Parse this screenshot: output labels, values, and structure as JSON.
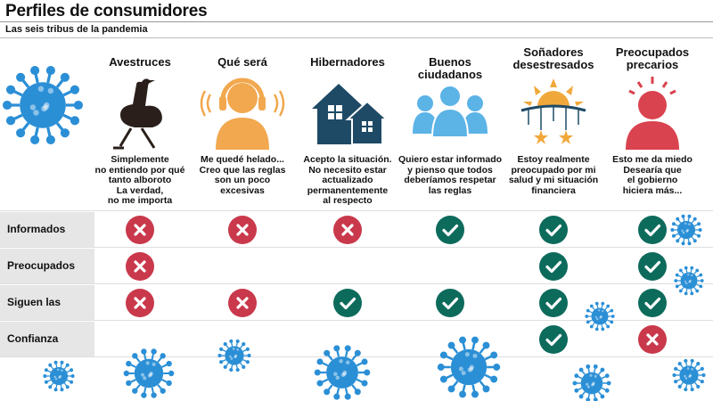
{
  "header": {
    "title": "Perfiles de consumidores",
    "subtitle": "Las seis tribus de la pandemia"
  },
  "colors": {
    "check": "#0d6b5c",
    "cross": "#c9394b",
    "virus": "#2b8fd6",
    "row_label_bg": "#e6e6e6"
  },
  "tribes": [
    {
      "name": "Avestruces",
      "icon": "ostrich-icon",
      "desc": [
        "Simplemente",
        "no entiendo por qué",
        "tanto alboroto",
        "La verdad,",
        "no me importa"
      ]
    },
    {
      "name": "Qué será",
      "icon": "headphones-person-icon",
      "desc": [
        "Me quedé helado...",
        "Creo que las reglas",
        "son un poco",
        "excesivas"
      ]
    },
    {
      "name": "Hibernadores",
      "icon": "houses-icon",
      "desc": [
        "Acepto la situación.",
        "No necesito estar",
        "actualizado",
        "permanentemente",
        "al respecto"
      ]
    },
    {
      "name": "Buenos ciudadanos",
      "icon": "group-people-icon",
      "desc": [
        "Quiero estar informado",
        "y pienso que todos",
        "deberíamos respetar",
        "las reglas"
      ]
    },
    {
      "name": [
        "Soñadores",
        "desestresados"
      ],
      "icon": "sun-mobile-icon",
      "desc": [
        "Estoy realmente",
        "preocupado por mi",
        "salud y mi situación",
        "financiera"
      ]
    },
    {
      "name": [
        "Preocupados",
        "precarios"
      ],
      "icon": "worried-person-icon",
      "desc": [
        "Esto me da miedo",
        "Desearía que",
        "el gobierno",
        "hiciera más..."
      ]
    }
  ],
  "rows": [
    {
      "label": "Informados",
      "marks": [
        "no",
        "no",
        "no",
        "yes",
        "yes",
        "yes"
      ]
    },
    {
      "label": "Preocupados",
      "marks": [
        "no",
        "",
        "",
        "",
        "yes",
        "yes"
      ]
    },
    {
      "label": "Siguen las reglas",
      "marks": [
        "no",
        "no",
        "yes",
        "yes",
        "yes",
        "yes"
      ]
    },
    {
      "label": "Confianza",
      "marks": [
        "",
        "",
        "",
        "",
        "yes",
        "no"
      ]
    }
  ],
  "icons": {
    "check": "check-icon",
    "cross": "cross-icon",
    "virus": "virus-icon"
  }
}
